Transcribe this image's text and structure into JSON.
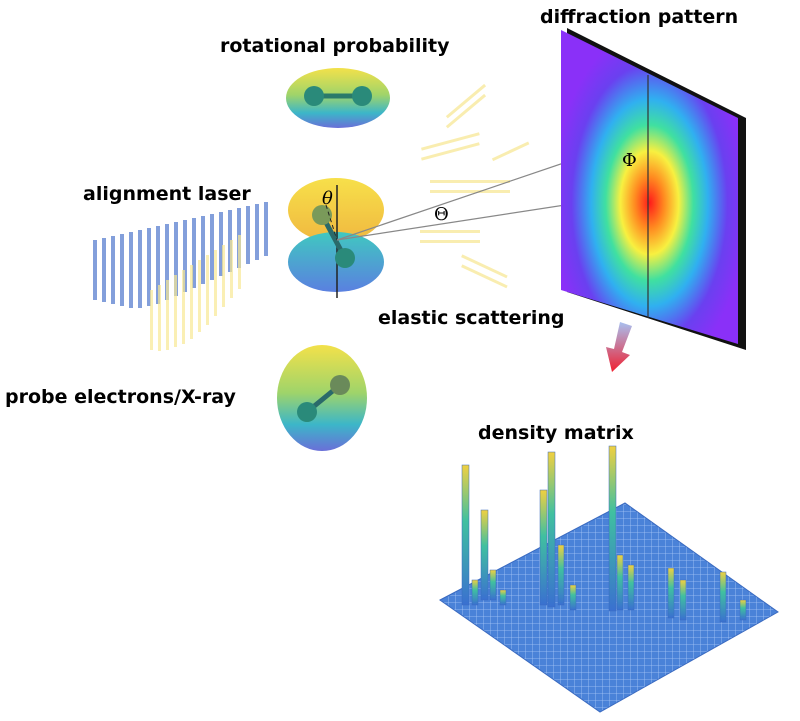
{
  "labels": {
    "rotational_probability": "rotational probability",
    "diffraction_pattern": "diffraction pattern",
    "alignment_laser": "alignment laser",
    "elastic_scattering": "elastic scattering",
    "probe": "probe electrons/X-ray",
    "density_matrix": "density matrix"
  },
  "symbols": {
    "theta_small": "θ",
    "theta_big": "Θ",
    "phi": "Φ"
  }
}
